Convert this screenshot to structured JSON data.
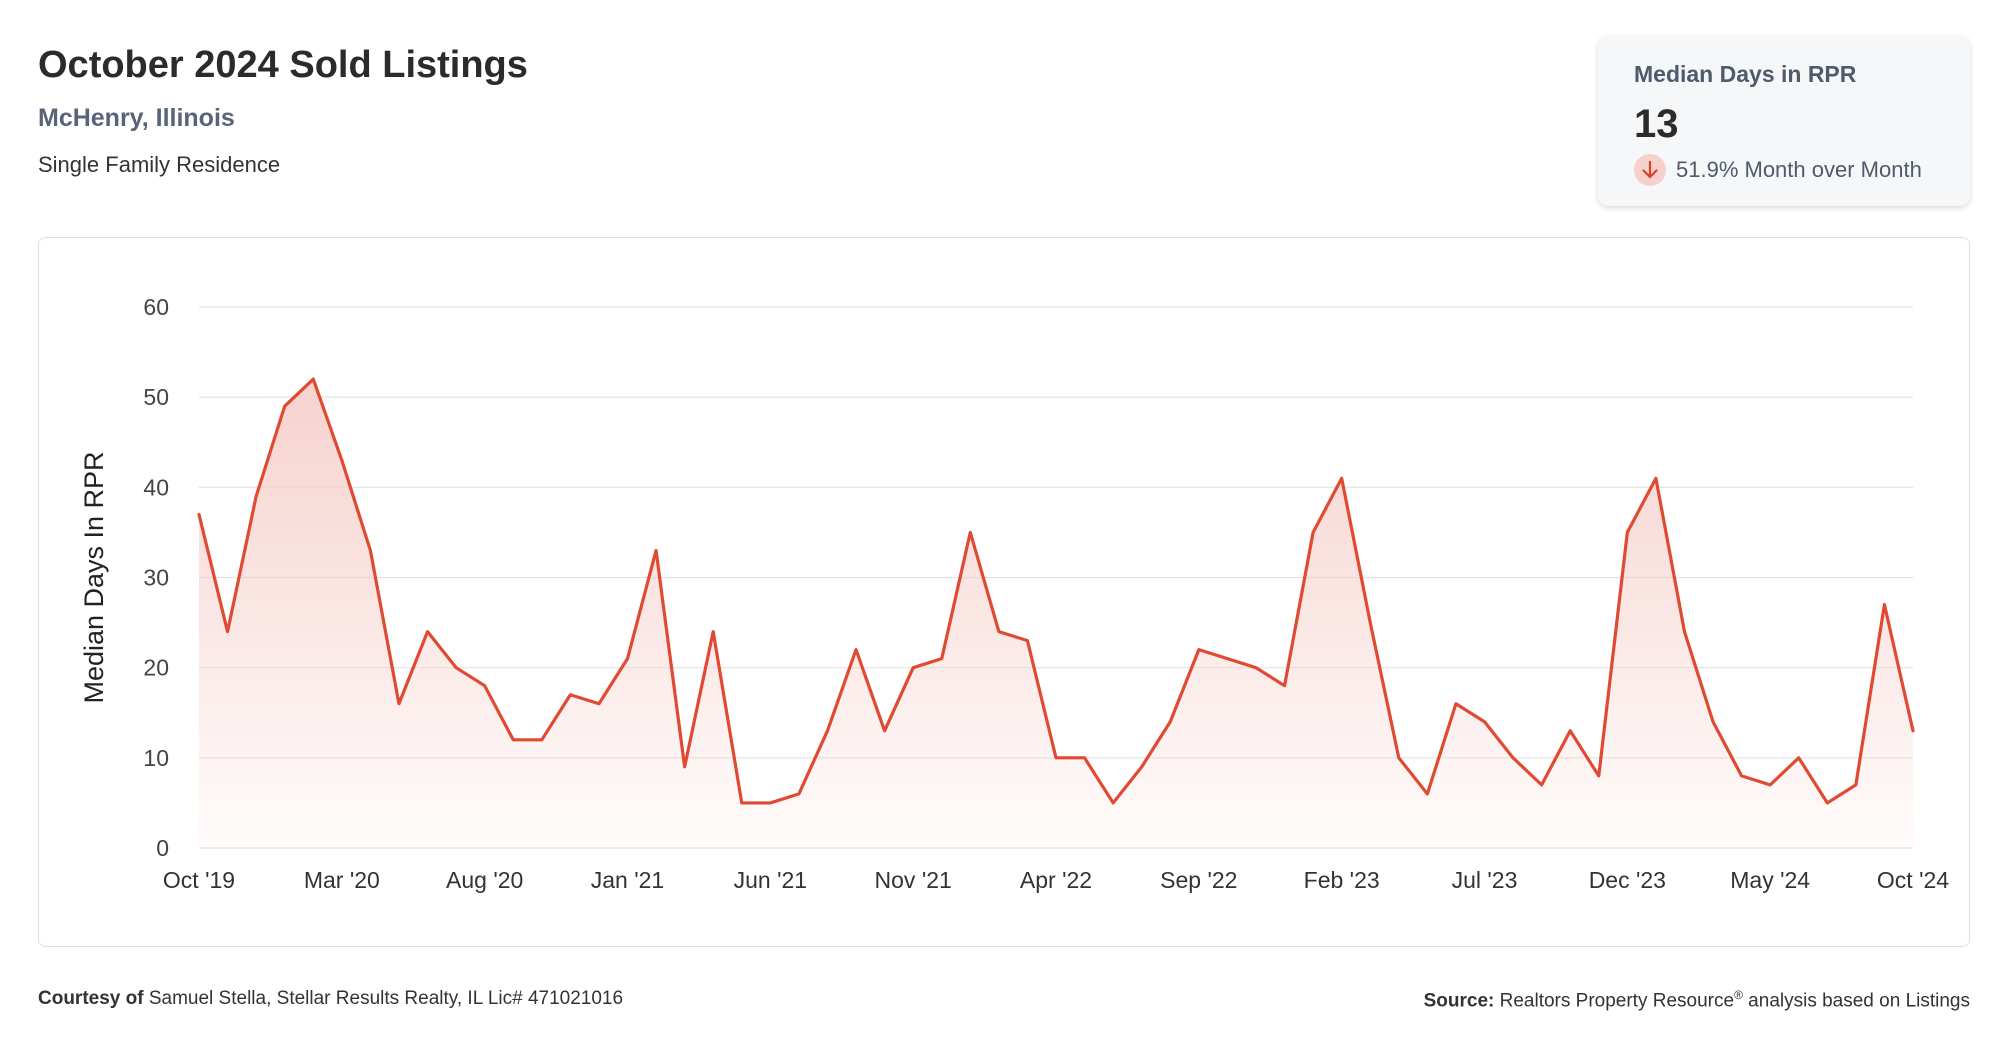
{
  "header": {
    "title": "October 2024 Sold Listings",
    "location": "McHenry, Illinois",
    "property_type": "Single Family Residence"
  },
  "summary_card": {
    "label": "Median Days in RPR",
    "value": "13",
    "change": "51.9% Month over Month",
    "direction_icon": "arrow-down-icon"
  },
  "footer": {
    "courtesy_label": "Courtesy of",
    "courtesy_text": "Samuel Stella, Stellar Results Realty, IL Lic# 471021016",
    "source_label": "Source:",
    "source_text_a": "Realtors Property Resource",
    "source_mark": "®",
    "source_text_b": " analysis based on Listings"
  },
  "colors": {
    "line": "#e04a33",
    "fill": "#f6d0cb",
    "grid": "#e3e3e3",
    "icon_bg": "#f6d0cb"
  },
  "chart_data": {
    "type": "area",
    "title": "",
    "xlabel": "",
    "ylabel": "Median Days In RPR",
    "ylim": [
      0,
      60
    ],
    "yticks": [
      0,
      10,
      20,
      30,
      40,
      50,
      60
    ],
    "grid": true,
    "x_tick_labels": [
      "Oct '19",
      "Mar '20",
      "Aug '20",
      "Jan '21",
      "Jun '21",
      "Nov '21",
      "Apr '22",
      "Sep '22",
      "Feb '23",
      "Jul '23",
      "Dec '23",
      "May '24",
      "Oct '24"
    ],
    "x_tick_every_n_months": 5,
    "x_start": "Oct '19",
    "x_end": "Oct '24",
    "values": [
      37,
      24,
      39,
      49,
      52,
      43,
      33,
      16,
      24,
      20,
      18,
      12,
      12,
      17,
      16,
      21,
      33,
      9,
      24,
      5,
      5,
      6,
      13,
      22,
      13,
      20,
      21,
      35,
      24,
      23,
      10,
      10,
      5,
      9,
      14,
      22,
      21,
      20,
      18,
      35,
      41,
      25,
      10,
      6,
      16,
      14,
      10,
      7,
      13,
      8,
      35,
      41,
      24,
      14,
      8,
      7,
      10,
      5,
      7,
      27,
      13
    ]
  }
}
